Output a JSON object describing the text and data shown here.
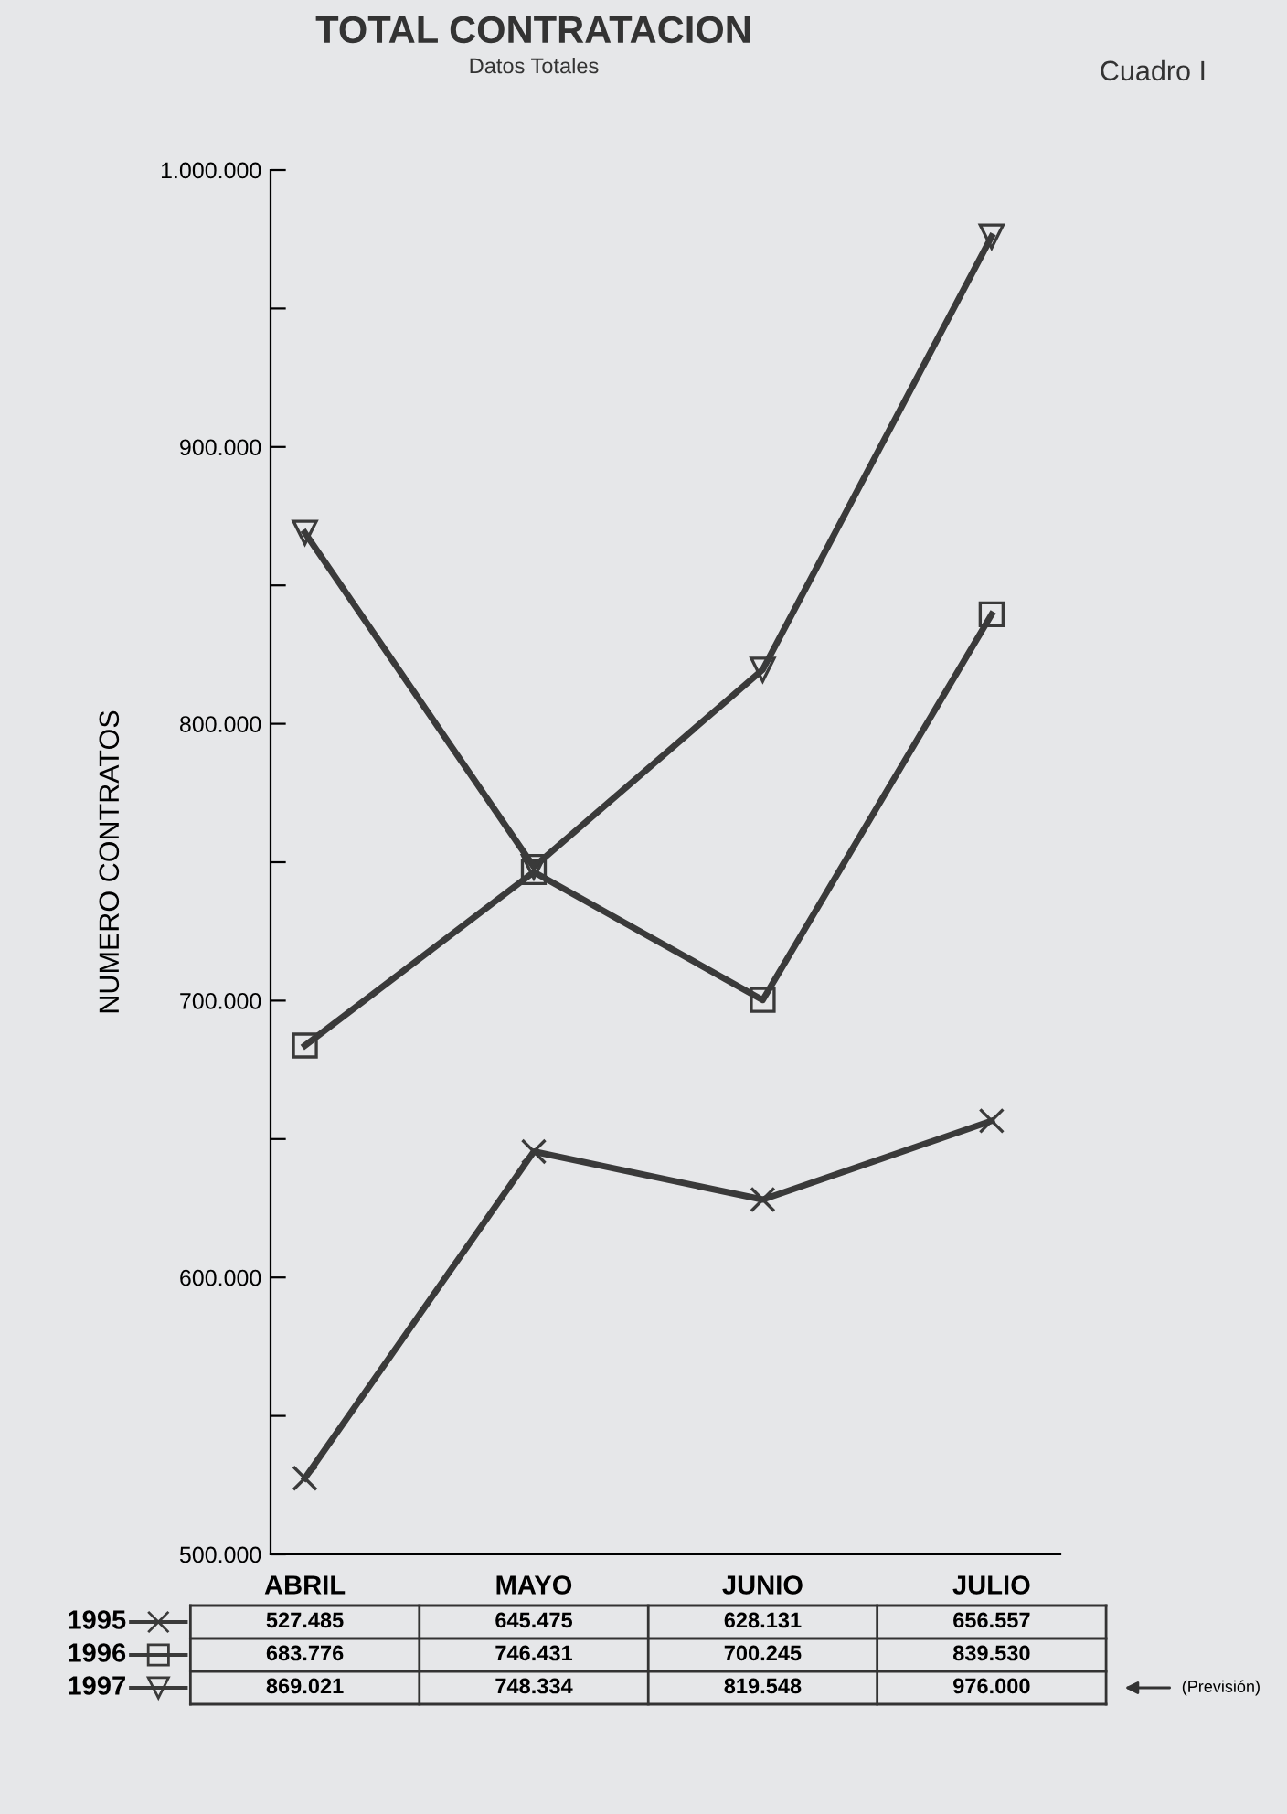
{
  "chart_data": {
    "type": "line",
    "title": "TOTAL CONTRATACION",
    "subtitle": "Datos Totales",
    "ylabel": "NUMERO CONTRATOS",
    "categories": [
      "ABRIL",
      "MAYO",
      "JUNIO",
      "JULIO"
    ],
    "series": [
      {
        "name": "1995",
        "color": "#3a3a3a",
        "marker": "cross",
        "values": [
          527485,
          645475,
          628131,
          656557
        ],
        "value_labels": [
          "527.485",
          "645.475",
          "628.131",
          "656.557"
        ]
      },
      {
        "name": "1996",
        "color": "#3a3a3a",
        "marker": "square",
        "values": [
          683776,
          746431,
          700245,
          839530
        ],
        "value_labels": [
          "683.776",
          "746.431",
          "700.245",
          "839.530"
        ]
      },
      {
        "name": "1997",
        "color": "#3a3a3a",
        "marker": "triangle",
        "values": [
          869021,
          748334,
          819548,
          976000
        ],
        "value_labels": [
          "869.021",
          "748.334",
          "819.548",
          "976.000"
        ]
      }
    ],
    "ylim": [
      500000,
      1000000
    ],
    "yticks": [
      {
        "value": 500000,
        "label": "500.000"
      },
      {
        "value": 550000,
        "label": null
      },
      {
        "value": 600000,
        "label": "600.000"
      },
      {
        "value": 650000,
        "label": null
      },
      {
        "value": 700000,
        "label": "700.000"
      },
      {
        "value": 750000,
        "label": null
      },
      {
        "value": 800000,
        "label": "800.000"
      },
      {
        "value": 850000,
        "label": null
      },
      {
        "value": 900000,
        "label": "900.000"
      },
      {
        "value": 950000,
        "label": null
      },
      {
        "value": 1000000,
        "label": "1.000.000"
      }
    ],
    "annotations": [
      "Cuadro I",
      "(Previsión)"
    ],
    "legend": "bottom left",
    "grid": false,
    "line_style": "solid"
  }
}
